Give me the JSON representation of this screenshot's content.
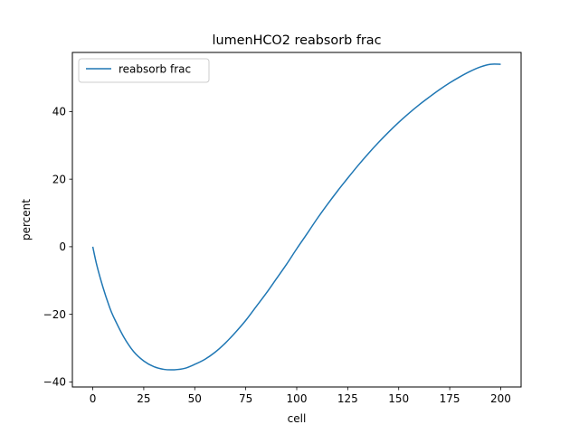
{
  "chart_data": {
    "type": "line",
    "title": "lumenHCO2 reabsorb frac",
    "xlabel": "cell",
    "ylabel": "percent",
    "xlim": [
      -10,
      210
    ],
    "ylim": [
      -41.5,
      57.5
    ],
    "xticks": [
      0,
      25,
      50,
      75,
      100,
      125,
      150,
      175,
      200
    ],
    "xtick_labels": [
      "0",
      "25",
      "50",
      "75",
      "100",
      "125",
      "150",
      "175",
      "200"
    ],
    "yticks": [
      -40,
      -20,
      0,
      20,
      40
    ],
    "ytick_labels": [
      "−40",
      "−20",
      "0",
      "20",
      "40"
    ],
    "grid": false,
    "legend_position": "upper left",
    "series": [
      {
        "name": "reabsorb frac",
        "color": "#1f77b4",
        "x": [
          0,
          2,
          5,
          8,
          10,
          15,
          20,
          25,
          30,
          35,
          40,
          45,
          50,
          55,
          60,
          65,
          70,
          75,
          80,
          85,
          90,
          95,
          100,
          105,
          110,
          115,
          120,
          125,
          130,
          135,
          140,
          145,
          150,
          155,
          160,
          165,
          170,
          175,
          180,
          185,
          190,
          195,
          200
        ],
        "y": [
          0,
          -5.5,
          -12,
          -17.5,
          -20.5,
          -26.5,
          -31,
          -33.8,
          -35.5,
          -36.3,
          -36.4,
          -36,
          -34.8,
          -33.3,
          -31.2,
          -28.5,
          -25.3,
          -21.8,
          -17.8,
          -13.8,
          -9.5,
          -5.2,
          -0.6,
          3.8,
          8.3,
          12.5,
          16.5,
          20.3,
          24,
          27.5,
          30.8,
          33.9,
          36.8,
          39.5,
          42,
          44.3,
          46.5,
          48.5,
          50.3,
          51.9,
          53.2,
          54,
          54
        ]
      }
    ]
  }
}
